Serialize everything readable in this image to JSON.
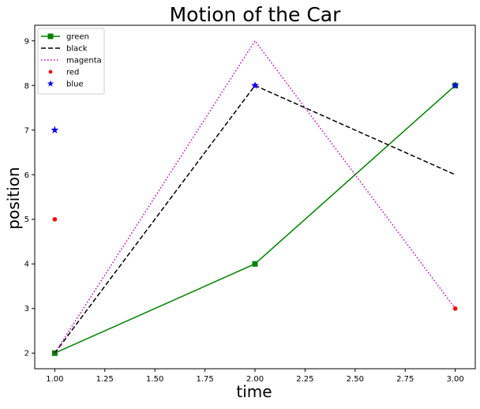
{
  "chart_data": {
    "type": "line",
    "title": "Motion of the Car",
    "xlabel": "time",
    "ylabel": "position",
    "xlim": [
      0.9,
      3.1
    ],
    "ylim": [
      1.65,
      9.35
    ],
    "xticks": [
      1.0,
      1.25,
      1.5,
      1.75,
      2.0,
      2.25,
      2.5,
      2.75,
      3.0
    ],
    "xtick_labels": [
      "1.00",
      "1.25",
      "1.50",
      "1.75",
      "2.00",
      "2.25",
      "2.50",
      "2.75",
      "3.00"
    ],
    "yticks": [
      2,
      3,
      4,
      5,
      6,
      7,
      8,
      9
    ],
    "ytick_labels": [
      "2",
      "3",
      "4",
      "5",
      "6",
      "7",
      "8",
      "9"
    ],
    "grid": false,
    "legend_position": "top-left",
    "series": [
      {
        "name": "green",
        "x": [
          1,
          2,
          3
        ],
        "y": [
          2,
          4,
          8
        ],
        "color": "#008000",
        "line": "solid",
        "marker": "square"
      },
      {
        "name": "black",
        "x": [
          1,
          2,
          3
        ],
        "y": [
          2,
          8,
          6
        ],
        "color": "#000000",
        "line": "dashed",
        "marker": "none"
      },
      {
        "name": "magenta",
        "x": [
          1,
          2,
          3
        ],
        "y": [
          2,
          9,
          3
        ],
        "color": "#bf00bf",
        "line": "dotted",
        "marker": "none"
      },
      {
        "name": "red",
        "x": [
          1,
          2,
          3
        ],
        "y": [
          5,
          8,
          3
        ],
        "color": "#ff0000",
        "line": "none",
        "marker": "circle"
      },
      {
        "name": "blue",
        "x": [
          1,
          2,
          3
        ],
        "y": [
          7,
          8,
          8
        ],
        "color": "#0000ff",
        "line": "none",
        "marker": "star"
      }
    ]
  }
}
